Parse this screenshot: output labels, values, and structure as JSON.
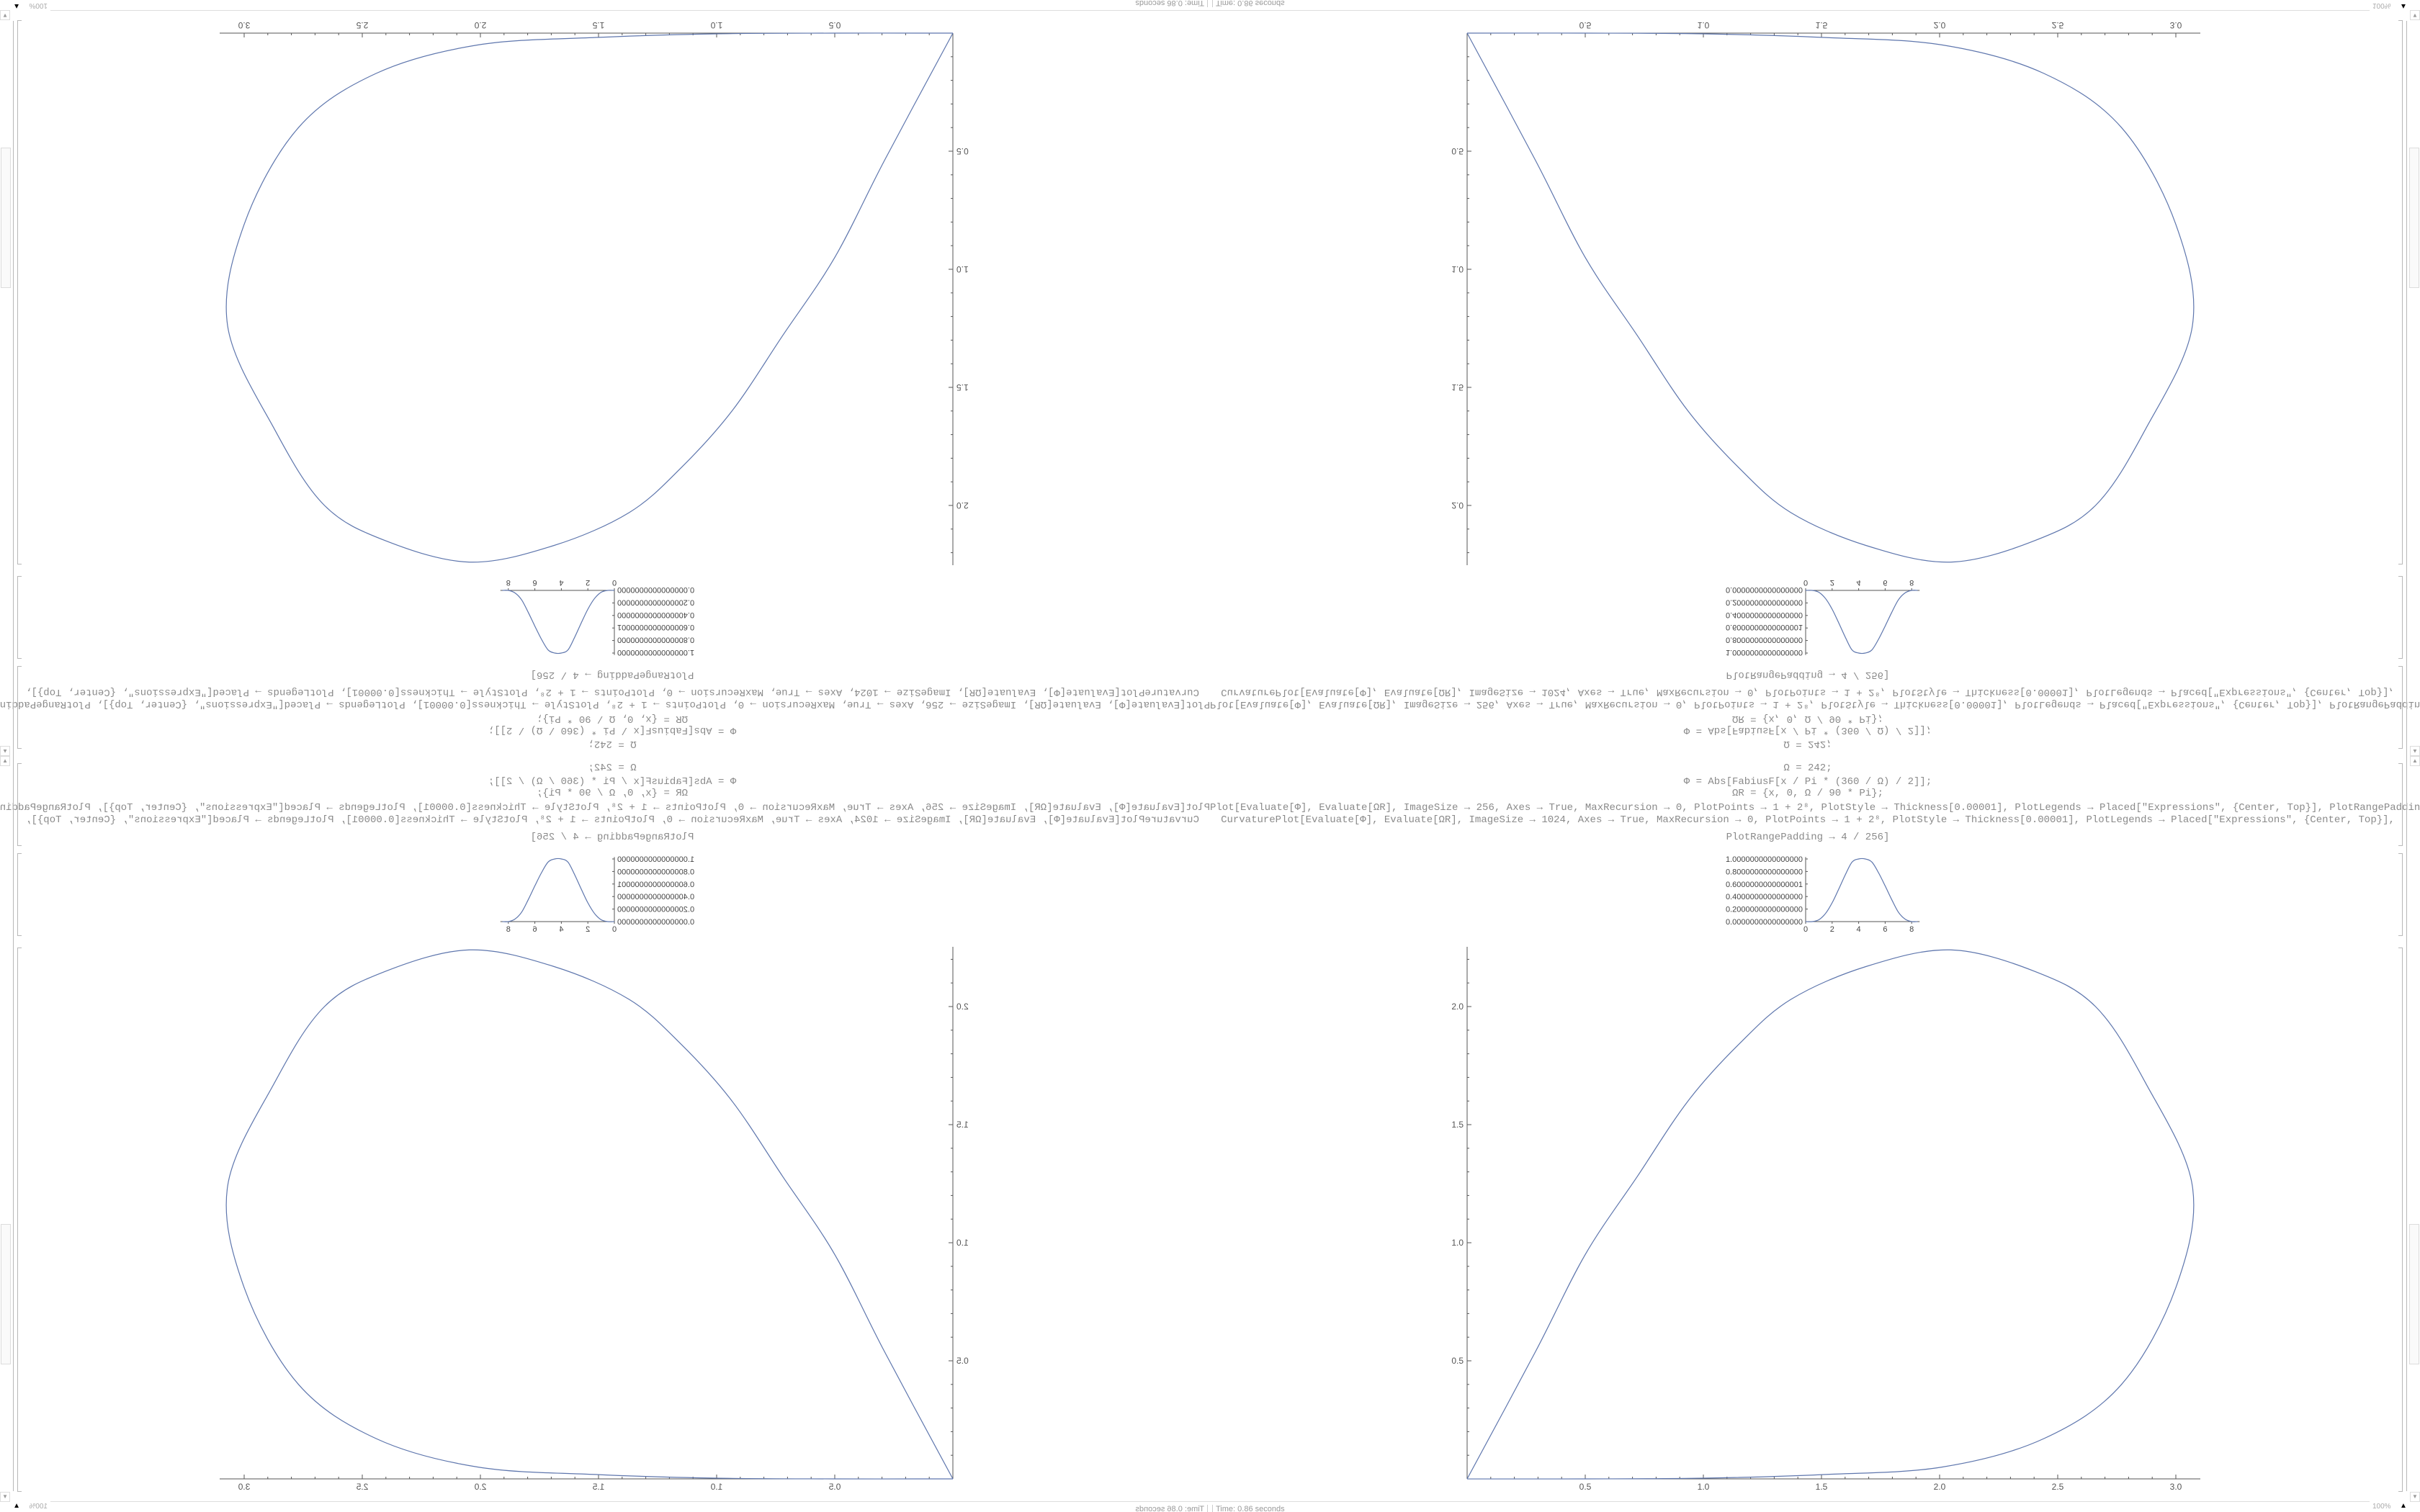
{
  "code": {
    "line1": "Ω = 242;",
    "line2": "Φ = Abs[FabiusF[x / Pi * (360 / Ω) / 2]];",
    "line3": "ΩR = {x, 0, Ω / 90 * Pi};",
    "line4": "Plot[Evaluate[Φ], Evaluate[ΩR], ImageSize → 256, Axes → True, MaxRecursion → 0, PlotPoints → 1 + 2⁸, PlotStyle → Thickness[0.00001], PlotLegends → Placed[\"Expressions\", {Center, Top}], PlotRangePadding → 4 / 256]",
    "line5": "CurvaturePlot[Evaluate[Φ], Evaluate[ΩR], ImageSize → 1024, Axes → True, MaxRecursion → 0, PlotPoints → 1 + 2⁸, PlotStyle → Thickness[0.00001], PlotLegends → Placed[\"Expressions\", {Center, Top}],",
    "line6": "PlotRangePadding → 4 / 256]"
  },
  "status": {
    "time": "Time: 0.86 seconds",
    "zoom": "100%"
  },
  "colors": {
    "curve": "#5e76ad",
    "axis": "#555555",
    "bracket": "#b8b8b8"
  },
  "chart_data": [
    {
      "type": "line",
      "xlim": [
        0,
        8.45
      ],
      "ylim": [
        0,
        1
      ],
      "x_ticks": [
        "0",
        "2",
        "4",
        "6",
        "8"
      ],
      "y_ticks": [
        "0.0000000000000000",
        "0.2000000000000000",
        "0.4000000000000000",
        "0.6000000000000001",
        "0.8000000000000000",
        "1.0000000000000000"
      ],
      "x": [
        0,
        0.5,
        1,
        1.5,
        2,
        2.5,
        3,
        3.5,
        4,
        4.5,
        5,
        5.5,
        6,
        6.5,
        7,
        7.5,
        8,
        8.45
      ],
      "y": [
        0,
        0,
        0.03,
        0.13,
        0.3,
        0.52,
        0.75,
        0.95,
        1,
        1,
        0.95,
        0.78,
        0.57,
        0.35,
        0.15,
        0.04,
        0,
        0
      ]
    },
    {
      "type": "line",
      "xlim": [
        0,
        3.07
      ],
      "ylim": [
        0,
        2.24
      ],
      "x_ticks": [
        "0.5",
        "1.0",
        "1.5",
        "2.0",
        "2.5",
        "3.0"
      ],
      "y_ticks": [
        "0.5",
        "1.0",
        "1.5",
        "2.0"
      ],
      "x": [
        0,
        0.5,
        1.0,
        1.5,
        2.01,
        2.44,
        2.77,
        3.0,
        3.07,
        2.87,
        2.66,
        2.4,
        2.045,
        1.69,
        1.37,
        1.15,
        0.935,
        0.72,
        0.5,
        0.29,
        0
      ],
      "y": [
        0,
        0,
        0.003,
        0.018,
        0.05,
        0.17,
        0.4,
        0.81,
        1.24,
        1.68,
        2.0,
        2.15,
        2.24,
        2.17,
        2.03,
        1.84,
        1.6,
        1.28,
        0.95,
        0.54,
        0
      ]
    }
  ]
}
